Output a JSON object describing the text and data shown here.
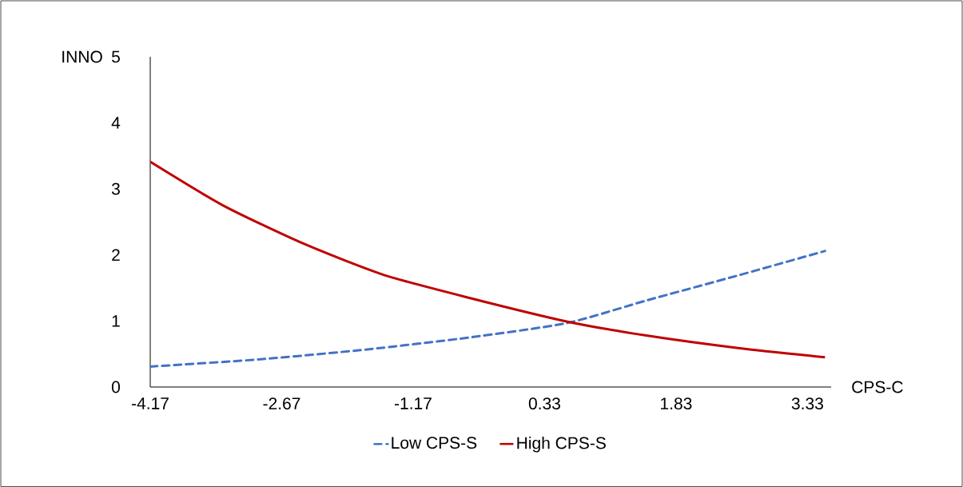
{
  "chart_data": {
    "type": "line",
    "xlabel": "CPS-C",
    "ylabel": "INNO",
    "xlim": [
      -4.17,
      3.6
    ],
    "xticks": [
      -4.17,
      -2.67,
      -1.17,
      0.33,
      1.83,
      3.33
    ],
    "ylim": [
      0,
      5
    ],
    "yticks": [
      0,
      1,
      2,
      3,
      4,
      5
    ],
    "grid": false,
    "legend": "bottom",
    "series": [
      {
        "name": "Low CPS-S",
        "color": "#4472c4",
        "line_style": "dashed",
        "x": [
          -4.17,
          -2.91,
          -1.69,
          -0.53,
          0.59,
          1.49,
          2.54,
          3.53
        ],
        "values": [
          0.31,
          0.42,
          0.57,
          0.75,
          0.97,
          1.31,
          1.69,
          2.06
        ]
      },
      {
        "name": "High CPS-S",
        "color": "#c00000",
        "line_style": "solid",
        "x": [
          -4.17,
          -3.34,
          -2.42,
          -1.51,
          -0.53,
          0.59,
          1.49,
          2.54,
          3.53
        ],
        "values": [
          3.41,
          2.75,
          2.17,
          1.7,
          1.35,
          0.99,
          0.78,
          0.59,
          0.45
        ]
      }
    ]
  }
}
